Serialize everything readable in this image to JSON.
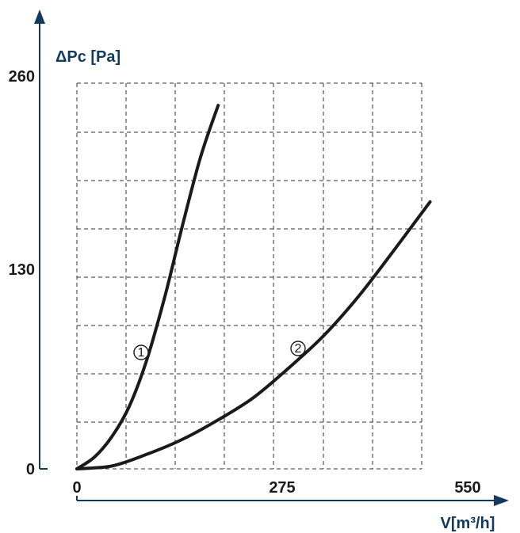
{
  "chart_data": {
    "type": "line",
    "title": "",
    "xlabel": "V[m³/h]",
    "ylabel": "ΔPc [Pa]",
    "xlim": [
      0,
      550
    ],
    "ylim": [
      0,
      260
    ],
    "x_ticks": [
      "0",
      "275",
      "550"
    ],
    "y_ticks": [
      "0",
      "130",
      "260"
    ],
    "grid": true,
    "grid_style": "dashed",
    "colors": {
      "axis": "#123a5c",
      "curve": "#1a1a1a",
      "grid": "#333333"
    },
    "series": [
      {
        "label": "①",
        "x": [
          0,
          25,
          50,
          75,
          100,
          125,
          150,
          175,
          200
        ],
        "y": [
          0,
          8,
          22,
          43,
          75,
          117,
          165,
          210,
          245
        ]
      },
      {
        "label": "②",
        "x": [
          0,
          50,
          100,
          150,
          200,
          250,
          300,
          350,
          400,
          450,
          500
        ],
        "y": [
          0,
          2,
          10,
          20,
          33,
          48,
          68,
          90,
          117,
          148,
          180
        ]
      }
    ]
  }
}
